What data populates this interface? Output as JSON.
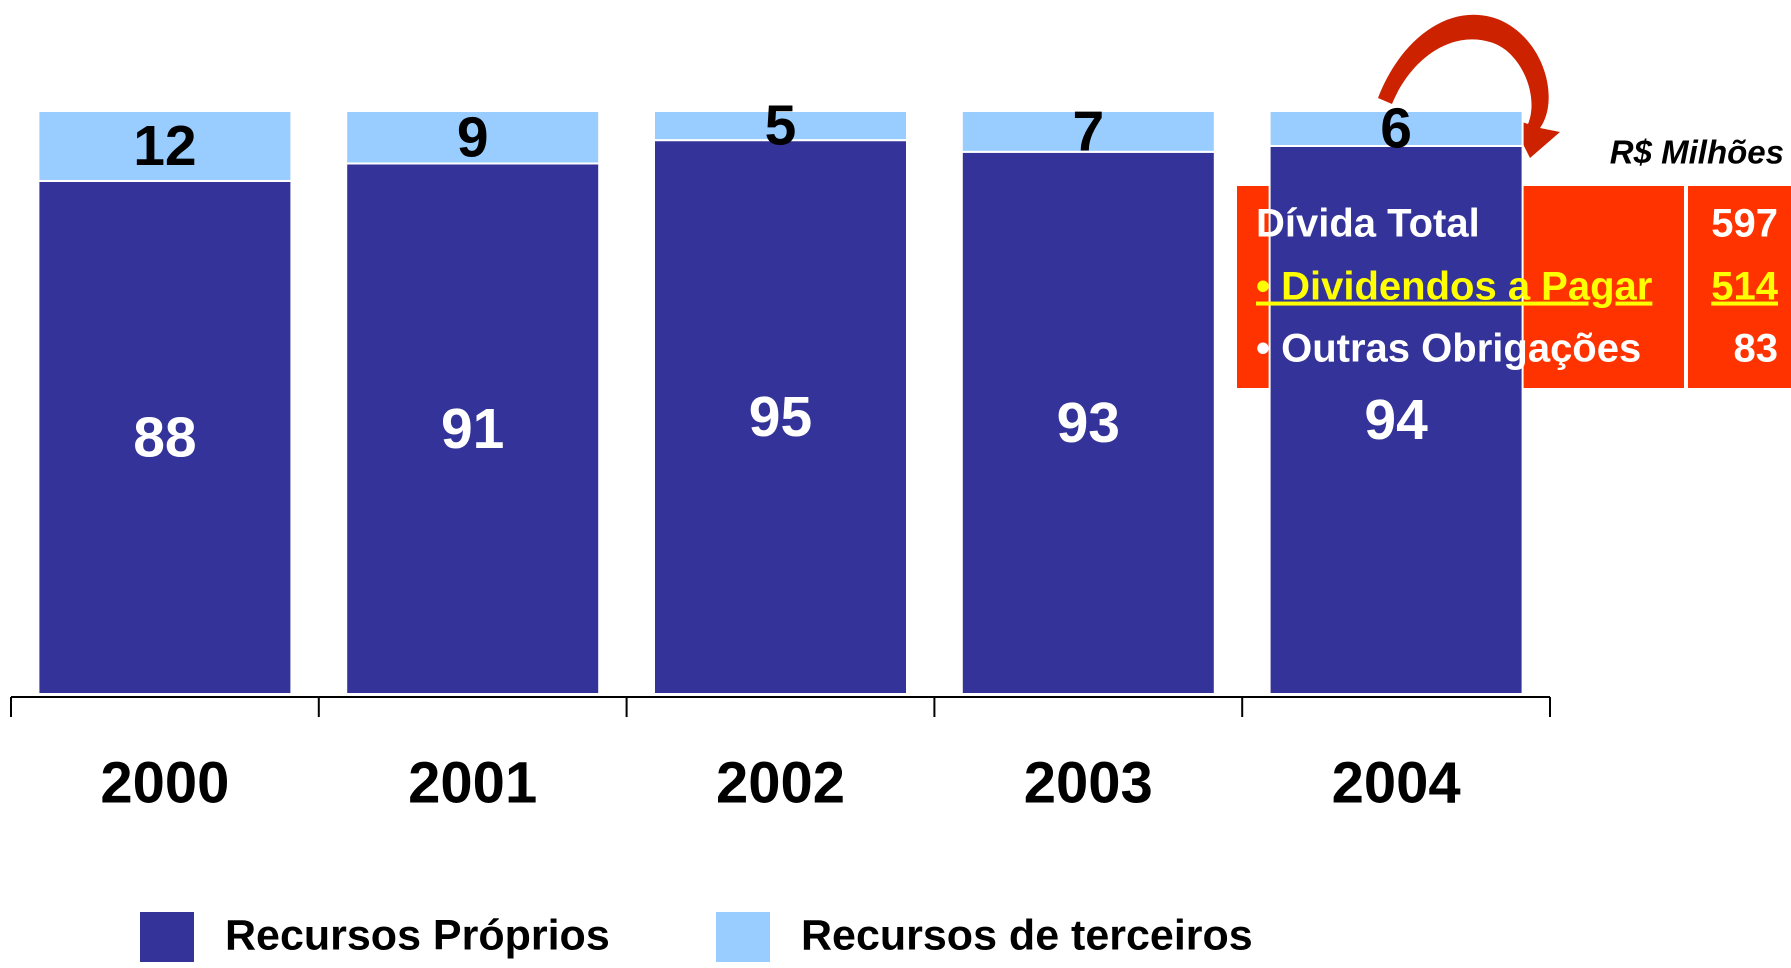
{
  "chart_data": {
    "type": "stacked_bar",
    "categories": [
      "2000",
      "2001",
      "2002",
      "2003",
      "2004"
    ],
    "series": [
      {
        "name": "Recursos Próprios",
        "color": "#333399",
        "values": [
          88,
          91,
          95,
          93,
          94
        ]
      },
      {
        "name": "Recursos de terceiros",
        "color": "#99ccff",
        "values": [
          12,
          9,
          5,
          7,
          6
        ]
      }
    ],
    "ylim": [
      0,
      100
    ],
    "annotation": {
      "unit": "R$ Milhões",
      "rows": [
        {
          "label": "Dívida Total",
          "value": 597
        },
        {
          "label": "• Dividendos a Pagar",
          "value": 514
        },
        {
          "label": "• Outras Obrigações",
          "value": 83
        }
      ]
    }
  }
}
